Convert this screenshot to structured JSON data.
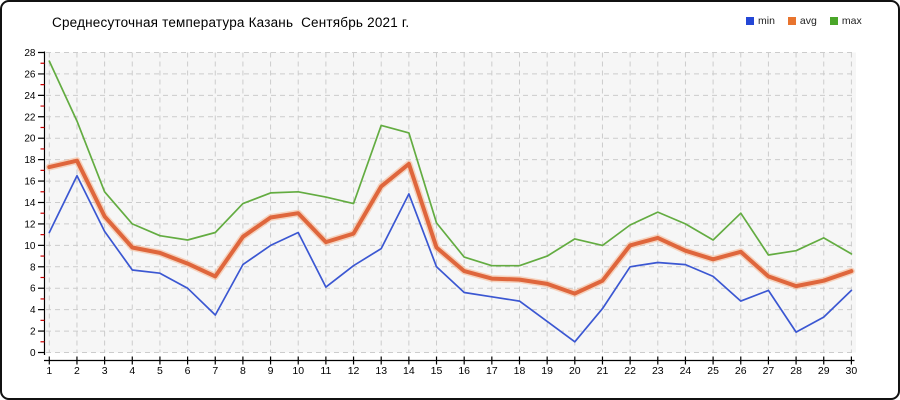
{
  "title": "Среднесуточная температура Казань  Сентябрь 2021 г.",
  "legend": {
    "items": [
      {
        "label": "min",
        "color": "#2447d6"
      },
      {
        "label": "avg",
        "color": "#e8742e"
      },
      {
        "label": "max",
        "color": "#4aa629"
      }
    ]
  },
  "chart_data": {
    "type": "line",
    "title": "Среднесуточная температура Казань  Сентябрь 2021 г.",
    "xlabel": "",
    "ylabel": "",
    "x": [
      1,
      2,
      3,
      4,
      5,
      6,
      7,
      8,
      9,
      10,
      11,
      12,
      13,
      14,
      15,
      16,
      17,
      18,
      19,
      20,
      21,
      22,
      23,
      24,
      25,
      26,
      27,
      28,
      29,
      30
    ],
    "series": [
      {
        "name": "max",
        "color": "#63ac41",
        "width": 1.7,
        "values": [
          27.2,
          21.6,
          15.0,
          12.0,
          10.9,
          10.5,
          11.2,
          13.9,
          14.9,
          15.0,
          14.5,
          13.9,
          21.2,
          20.5,
          12.1,
          8.9,
          8.1,
          8.1,
          9.0,
          10.6,
          10.0,
          11.9,
          13.1,
          12.0,
          10.5,
          13.0,
          9.1,
          9.5,
          10.7,
          9.2
        ]
      },
      {
        "name": "min",
        "color": "#3b57d2",
        "width": 1.7,
        "values": [
          11.2,
          16.5,
          11.3,
          7.7,
          7.4,
          6.0,
          3.5,
          8.2,
          10.0,
          11.2,
          6.1,
          8.1,
          9.7,
          14.8,
          8.0,
          5.6,
          5.2,
          4.8,
          2.9,
          1.0,
          4.1,
          8.0,
          8.4,
          8.2,
          7.1,
          4.8,
          5.8,
          1.9,
          3.3,
          5.8
        ]
      },
      {
        "name": "avg",
        "color": "#df663c",
        "halo": "#f4b48e",
        "width": 4,
        "values": [
          17.3,
          17.9,
          12.7,
          9.8,
          9.3,
          8.3,
          7.1,
          10.8,
          12.6,
          13.0,
          10.3,
          11.1,
          15.5,
          17.6,
          9.8,
          7.6,
          6.9,
          6.8,
          6.4,
          5.5,
          6.7,
          10.0,
          10.7,
          9.5,
          8.7,
          9.4,
          7.1,
          6.2,
          6.7,
          7.6
        ]
      }
    ],
    "ylim": [
      0,
      28
    ],
    "ytick_step": 2,
    "yticks": [
      0,
      2,
      4,
      6,
      8,
      10,
      12,
      14,
      16,
      18,
      20,
      22,
      24,
      26,
      28
    ],
    "grid": true,
    "grid_style": "dashed",
    "grid_color": "#cccccc",
    "plot_bg": "#f6f6f6",
    "axis_color": "#000000",
    "minor_tick_color": "#cc0000",
    "legend_position": "top-right"
  }
}
